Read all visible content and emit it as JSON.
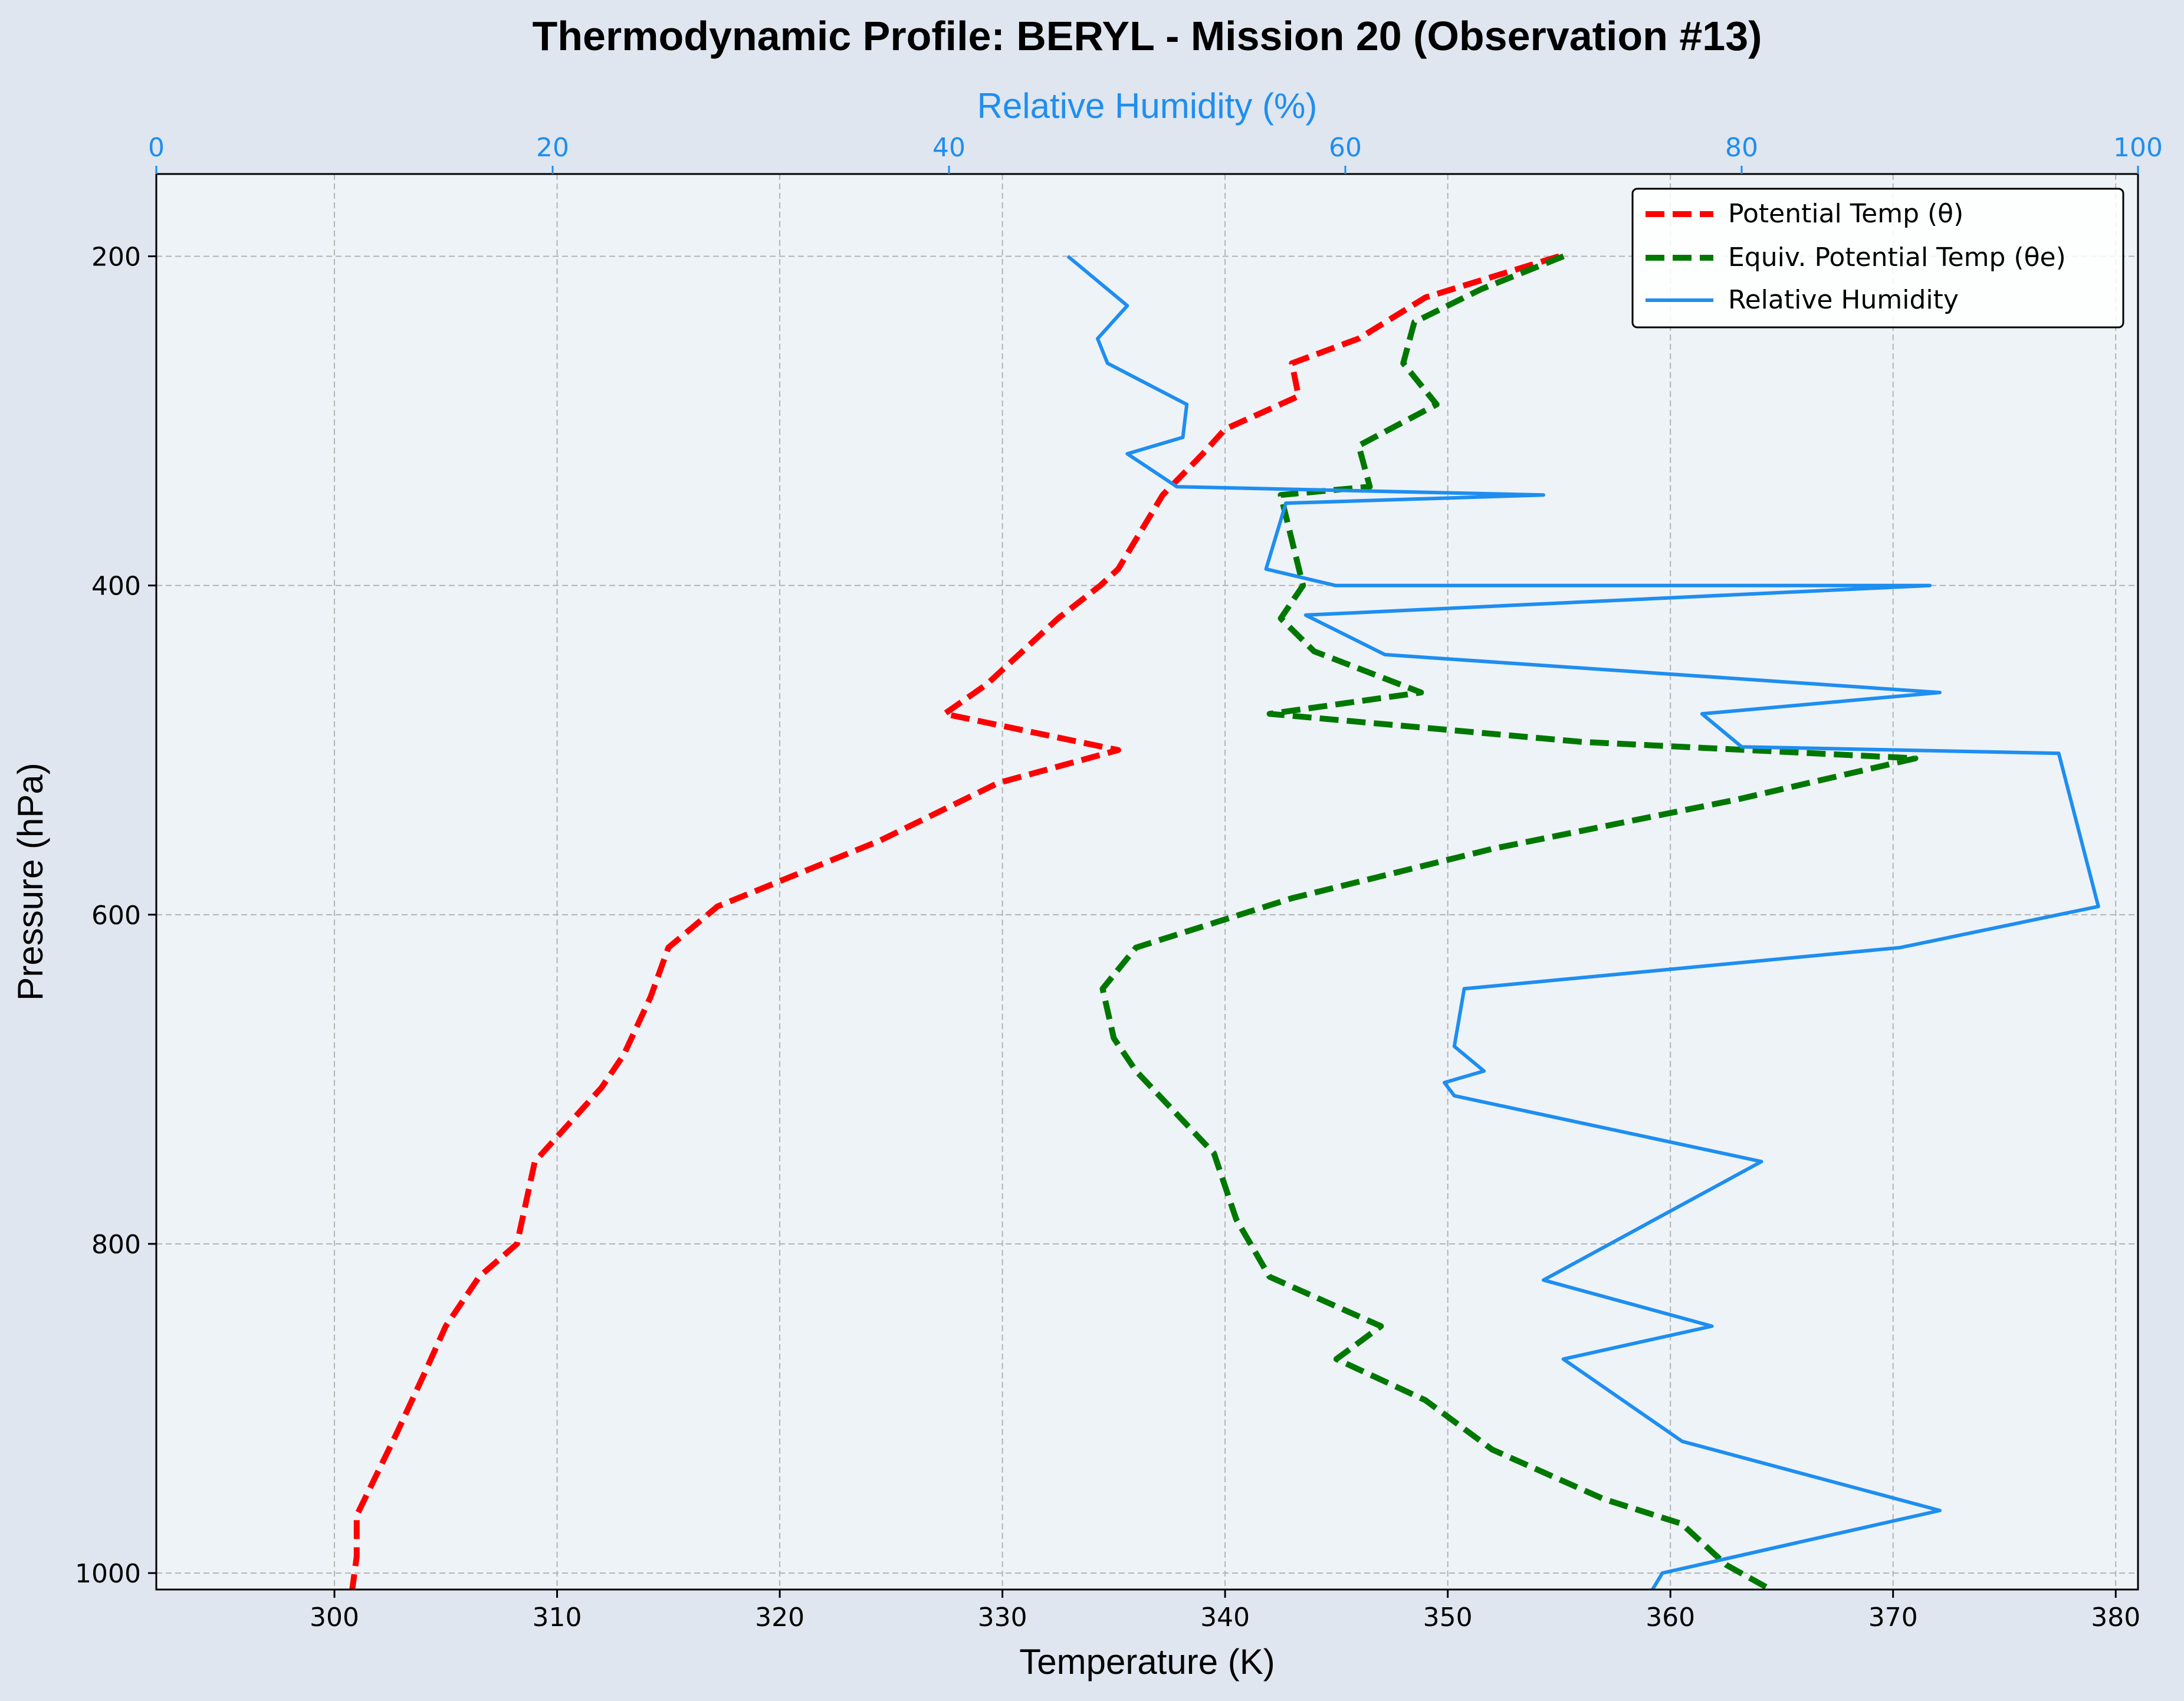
{
  "colors": {
    "page_bg": "#dfe6ef",
    "plot_bg": "#eef3f8",
    "grid": "#b3b3b3",
    "theta": "#ff0000",
    "theta_e": "#007800",
    "rh": "#1e8ef0"
  },
  "chart_data": {
    "type": "line",
    "title": "Thermodynamic Profile:  BERYL - Mission 20 (Observation #13)",
    "xlabel": "Temperature (K)",
    "ylabel": "Pressure (hPa)",
    "x2label": "Relative Humidity (%)",
    "xlim": [
      292,
      381
    ],
    "x2lim": [
      0,
      100
    ],
    "ylim": [
      1010,
      150
    ],
    "y_inverted": true,
    "grid": true,
    "legend_position": "upper right",
    "x_ticks": [
      300,
      310,
      320,
      330,
      340,
      350,
      360,
      370,
      380
    ],
    "x2_ticks": [
      0,
      20,
      40,
      60,
      80,
      100
    ],
    "y_ticks": [
      200,
      400,
      600,
      800,
      1000
    ],
    "series": [
      {
        "name": "Potential Temp (θ)",
        "axis": "bottom",
        "style": "dashed",
        "color": "#ff0000",
        "points": [
          [
            355.0,
            200
          ],
          [
            349.0,
            225
          ],
          [
            346.0,
            250
          ],
          [
            343.0,
            265
          ],
          [
            343.3,
            285
          ],
          [
            340.0,
            305
          ],
          [
            339.0,
            320
          ],
          [
            337.2,
            345
          ],
          [
            335.2,
            390
          ],
          [
            334.4,
            400
          ],
          [
            332.5,
            420
          ],
          [
            329.3,
            460
          ],
          [
            327.4,
            478
          ],
          [
            335.2,
            500
          ],
          [
            329.8,
            520
          ],
          [
            324.5,
            555
          ],
          [
            317.2,
            595
          ],
          [
            315.0,
            620
          ],
          [
            314.2,
            650
          ],
          [
            313.0,
            685
          ],
          [
            312.0,
            705
          ],
          [
            309.0,
            750
          ],
          [
            308.2,
            800
          ],
          [
            306.5,
            820
          ],
          [
            305.0,
            850
          ],
          [
            304.0,
            880
          ],
          [
            302.8,
            915
          ],
          [
            301.0,
            965
          ],
          [
            301.0,
            990
          ],
          [
            300.8,
            1010
          ]
        ]
      },
      {
        "name": "Equiv. Potential Temp (θe)",
        "axis": "bottom",
        "style": "dashed",
        "color": "#007800",
        "points": [
          [
            355.2,
            200
          ],
          [
            351.5,
            220
          ],
          [
            348.5,
            240
          ],
          [
            348.0,
            265
          ],
          [
            349.5,
            290
          ],
          [
            346.0,
            315
          ],
          [
            346.5,
            340
          ],
          [
            342.5,
            345
          ],
          [
            343.5,
            400
          ],
          [
            342.5,
            420
          ],
          [
            344.0,
            440
          ],
          [
            348.8,
            465
          ],
          [
            342.0,
            478
          ],
          [
            356.0,
            495
          ],
          [
            371.0,
            505
          ],
          [
            363.0,
            530
          ],
          [
            352.0,
            560
          ],
          [
            343.0,
            590
          ],
          [
            336.0,
            620
          ],
          [
            334.5,
            645
          ],
          [
            335.0,
            675
          ],
          [
            336.0,
            695
          ],
          [
            339.5,
            745
          ],
          [
            340.5,
            785
          ],
          [
            342.0,
            820
          ],
          [
            347.0,
            850
          ],
          [
            345.0,
            870
          ],
          [
            349.0,
            895
          ],
          [
            352.0,
            925
          ],
          [
            357.0,
            955
          ],
          [
            360.5,
            970
          ],
          [
            362.5,
            995
          ],
          [
            364.5,
            1010
          ]
        ]
      },
      {
        "name": "Relative Humidity",
        "axis": "top",
        "style": "solid",
        "color": "#1e8ef0",
        "points": [
          [
            46.0,
            200
          ],
          [
            49.0,
            230
          ],
          [
            47.5,
            250
          ],
          [
            48.0,
            265
          ],
          [
            52.0,
            290
          ],
          [
            51.8,
            310
          ],
          [
            49.0,
            320
          ],
          [
            51.5,
            340
          ],
          [
            70.0,
            345
          ],
          [
            57.0,
            350
          ],
          [
            56.0,
            390
          ],
          [
            59.5,
            400
          ],
          [
            89.5,
            400
          ],
          [
            58.0,
            418
          ],
          [
            62.0,
            442
          ],
          [
            90.0,
            465
          ],
          [
            78.0,
            478
          ],
          [
            80.0,
            498
          ],
          [
            96.0,
            502
          ],
          [
            98.0,
            595
          ],
          [
            88.0,
            620
          ],
          [
            66.0,
            645
          ],
          [
            65.5,
            680
          ],
          [
            67.0,
            695
          ],
          [
            65.0,
            702
          ],
          [
            65.5,
            710
          ],
          [
            81.0,
            750
          ],
          [
            70.0,
            822
          ],
          [
            78.5,
            850
          ],
          [
            71.0,
            870
          ],
          [
            77.0,
            920
          ],
          [
            90.0,
            962
          ],
          [
            76.0,
            1000
          ],
          [
            75.5,
            1010
          ]
        ]
      }
    ]
  }
}
